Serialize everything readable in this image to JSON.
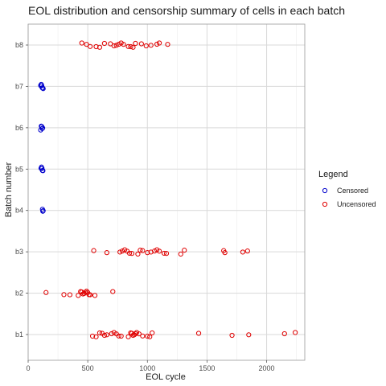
{
  "chart_data": {
    "type": "scatter",
    "title": "EOL distribution and censorship summary of cells in each batch",
    "xlabel": "EOL cycle",
    "ylabel": "Batch number",
    "xlim": [
      0,
      2320
    ],
    "x_ticks": [
      0,
      500,
      1000,
      1500,
      2000
    ],
    "categories": [
      "b1",
      "b2",
      "b3",
      "b4",
      "b5",
      "b6",
      "b7",
      "b8"
    ],
    "grid": true,
    "legend": {
      "title": "Legend",
      "position": "right"
    },
    "series": [
      {
        "name": "Censored",
        "color": "#0000cc",
        "points": [
          {
            "batch": "b4",
            "x": 120
          },
          {
            "batch": "b4",
            "x": 123
          },
          {
            "batch": "b4",
            "x": 126
          },
          {
            "batch": "b5",
            "x": 108
          },
          {
            "batch": "b5",
            "x": 112
          },
          {
            "batch": "b5",
            "x": 116
          },
          {
            "batch": "b5",
            "x": 120
          },
          {
            "batch": "b5",
            "x": 124
          },
          {
            "batch": "b6",
            "x": 105
          },
          {
            "batch": "b6",
            "x": 110
          },
          {
            "batch": "b6",
            "x": 114
          },
          {
            "batch": "b6",
            "x": 118
          },
          {
            "batch": "b6",
            "x": 122
          },
          {
            "batch": "b7",
            "x": 105
          },
          {
            "batch": "b7",
            "x": 110
          },
          {
            "batch": "b7",
            "x": 114
          },
          {
            "batch": "b7",
            "x": 118
          },
          {
            "batch": "b7",
            "x": 122
          },
          {
            "batch": "b7",
            "x": 126
          }
        ]
      },
      {
        "name": "Uncensored",
        "color": "#e00000",
        "points": [
          {
            "batch": "b1",
            "x": 540
          },
          {
            "batch": "b1",
            "x": 570
          },
          {
            "batch": "b1",
            "x": 600
          },
          {
            "batch": "b1",
            "x": 620
          },
          {
            "batch": "b1",
            "x": 640
          },
          {
            "batch": "b1",
            "x": 660
          },
          {
            "batch": "b1",
            "x": 700
          },
          {
            "batch": "b1",
            "x": 720
          },
          {
            "batch": "b1",
            "x": 740
          },
          {
            "batch": "b1",
            "x": 760
          },
          {
            "batch": "b1",
            "x": 780
          },
          {
            "batch": "b1",
            "x": 840
          },
          {
            "batch": "b1",
            "x": 860
          },
          {
            "batch": "b1",
            "x": 870
          },
          {
            "batch": "b1",
            "x": 880
          },
          {
            "batch": "b1",
            "x": 890
          },
          {
            "batch": "b1",
            "x": 900
          },
          {
            "batch": "b1",
            "x": 910
          },
          {
            "batch": "b1",
            "x": 930
          },
          {
            "batch": "b1",
            "x": 960
          },
          {
            "batch": "b1",
            "x": 1000
          },
          {
            "batch": "b1",
            "x": 1020
          },
          {
            "batch": "b1",
            "x": 1040
          },
          {
            "batch": "b1",
            "x": 1430
          },
          {
            "batch": "b1",
            "x": 1710
          },
          {
            "batch": "b1",
            "x": 1850
          },
          {
            "batch": "b1",
            "x": 2150
          },
          {
            "batch": "b1",
            "x": 2240
          },
          {
            "batch": "b2",
            "x": 150
          },
          {
            "batch": "b2",
            "x": 300
          },
          {
            "batch": "b2",
            "x": 350
          },
          {
            "batch": "b2",
            "x": 420
          },
          {
            "batch": "b2",
            "x": 440
          },
          {
            "batch": "b2",
            "x": 450
          },
          {
            "batch": "b2",
            "x": 460
          },
          {
            "batch": "b2",
            "x": 470
          },
          {
            "batch": "b2",
            "x": 480
          },
          {
            "batch": "b2",
            "x": 490
          },
          {
            "batch": "b2",
            "x": 500
          },
          {
            "batch": "b2",
            "x": 510
          },
          {
            "batch": "b2",
            "x": 520
          },
          {
            "batch": "b2",
            "x": 560
          },
          {
            "batch": "b2",
            "x": 710
          },
          {
            "batch": "b3",
            "x": 550
          },
          {
            "batch": "b3",
            "x": 660
          },
          {
            "batch": "b3",
            "x": 770
          },
          {
            "batch": "b3",
            "x": 790
          },
          {
            "batch": "b3",
            "x": 810
          },
          {
            "batch": "b3",
            "x": 830
          },
          {
            "batch": "b3",
            "x": 850
          },
          {
            "batch": "b3",
            "x": 870
          },
          {
            "batch": "b3",
            "x": 920
          },
          {
            "batch": "b3",
            "x": 940
          },
          {
            "batch": "b3",
            "x": 960
          },
          {
            "batch": "b3",
            "x": 1000
          },
          {
            "batch": "b3",
            "x": 1030
          },
          {
            "batch": "b3",
            "x": 1060
          },
          {
            "batch": "b3",
            "x": 1080
          },
          {
            "batch": "b3",
            "x": 1100
          },
          {
            "batch": "b3",
            "x": 1140
          },
          {
            "batch": "b3",
            "x": 1160
          },
          {
            "batch": "b3",
            "x": 1280
          },
          {
            "batch": "b3",
            "x": 1310
          },
          {
            "batch": "b3",
            "x": 1640
          },
          {
            "batch": "b3",
            "x": 1650
          },
          {
            "batch": "b3",
            "x": 1800
          },
          {
            "batch": "b3",
            "x": 1840
          },
          {
            "batch": "b8",
            "x": 450
          },
          {
            "batch": "b8",
            "x": 490
          },
          {
            "batch": "b8",
            "x": 520
          },
          {
            "batch": "b8",
            "x": 570
          },
          {
            "batch": "b8",
            "x": 600
          },
          {
            "batch": "b8",
            "x": 640
          },
          {
            "batch": "b8",
            "x": 690
          },
          {
            "batch": "b8",
            "x": 720
          },
          {
            "batch": "b8",
            "x": 740
          },
          {
            "batch": "b8",
            "x": 760
          },
          {
            "batch": "b8",
            "x": 780
          },
          {
            "batch": "b8",
            "x": 800
          },
          {
            "batch": "b8",
            "x": 840
          },
          {
            "batch": "b8",
            "x": 860
          },
          {
            "batch": "b8",
            "x": 880
          },
          {
            "batch": "b8",
            "x": 900
          },
          {
            "batch": "b8",
            "x": 950
          },
          {
            "batch": "b8",
            "x": 990
          },
          {
            "batch": "b8",
            "x": 1030
          },
          {
            "batch": "b8",
            "x": 1080
          },
          {
            "batch": "b8",
            "x": 1100
          },
          {
            "batch": "b8",
            "x": 1170
          }
        ]
      }
    ]
  }
}
